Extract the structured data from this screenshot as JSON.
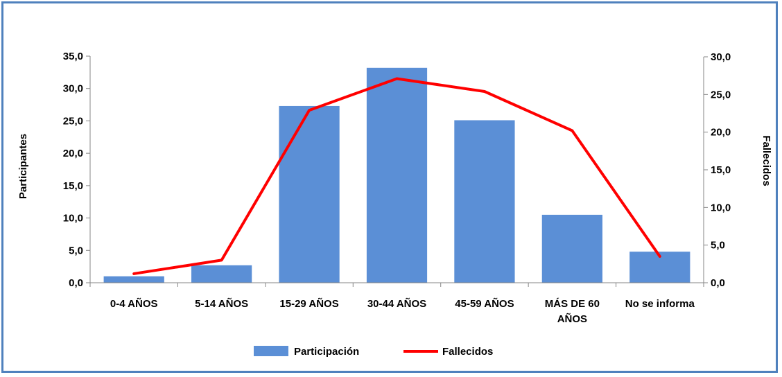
{
  "chart_data": {
    "type": "bar",
    "title": "",
    "categories": [
      [
        "0-4 AÑOS"
      ],
      [
        "5-14 AÑOS"
      ],
      [
        "15-29 AÑOS"
      ],
      [
        "30-44 AÑOS"
      ],
      [
        "45-59 AÑOS"
      ],
      [
        "MÁS DE 60",
        "AÑOS"
      ],
      [
        "No se informa"
      ]
    ],
    "series": [
      {
        "name": "Participación",
        "type": "bar",
        "axis": "left",
        "color": "#5b8fd6",
        "values": [
          1.0,
          2.7,
          27.3,
          33.2,
          25.1,
          10.5,
          4.8
        ]
      },
      {
        "name": "Fallecidos",
        "type": "line",
        "axis": "right",
        "color": "#ff0000",
        "values": [
          1.2,
          3.0,
          22.9,
          27.1,
          25.4,
          20.2,
          3.5
        ]
      }
    ],
    "ylabel_left": "Participantes",
    "ylabel_right": "Fallecidos",
    "ylim_left": [
      0,
      35
    ],
    "ylim_right": [
      0,
      30
    ],
    "yticks_left": [
      "0,0",
      "5,0",
      "10,0",
      "15,0",
      "20,0",
      "25,0",
      "30,0",
      "35,0"
    ],
    "yticks_right": [
      "0,0",
      "5,0",
      "10,0",
      "15,0",
      "20,0",
      "25,0",
      "30,0"
    ],
    "grid": false,
    "legend": "bottom"
  }
}
